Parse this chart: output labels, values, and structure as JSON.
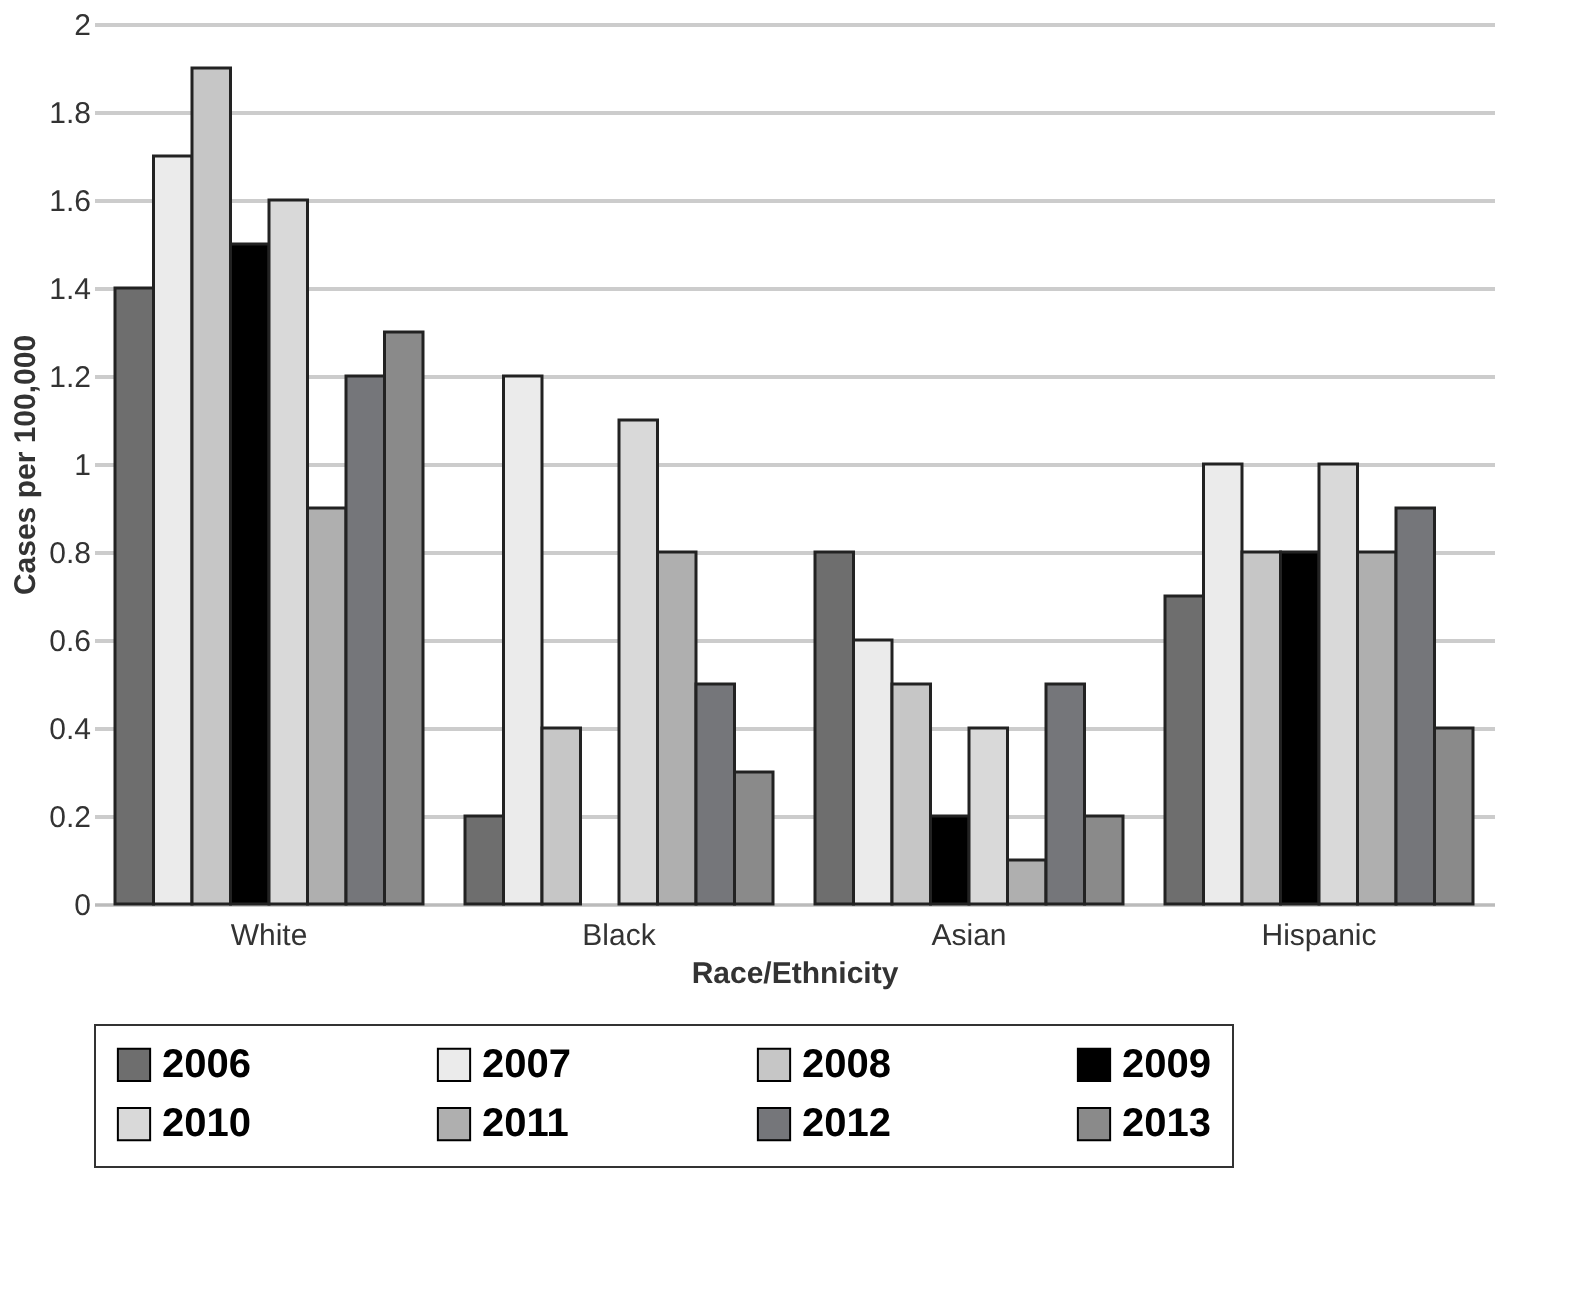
{
  "chart_data": {
    "type": "bar",
    "xlabel": "Race/Ethnicity",
    "ylabel": "Cases per 100,000",
    "categories": [
      "White",
      "Black",
      "Asian",
      "Hispanic"
    ],
    "series": [
      {
        "name": "2006",
        "color": "#6e6e6e",
        "values": [
          1.4,
          0.2,
          0.8,
          0.7
        ]
      },
      {
        "name": "2007",
        "color": "#ebebeb",
        "values": [
          1.7,
          1.2,
          0.6,
          1.0
        ]
      },
      {
        "name": "2008",
        "color": "#c6c6c6",
        "values": [
          1.9,
          0.4,
          0.5,
          0.8
        ]
      },
      {
        "name": "2009",
        "color": "#000000",
        "values": [
          1.5,
          null,
          0.2,
          0.8
        ]
      },
      {
        "name": "2010",
        "color": "#d9d9d9",
        "values": [
          1.6,
          1.1,
          0.4,
          1.0
        ]
      },
      {
        "name": "2011",
        "color": "#afafaf",
        "values": [
          0.9,
          0.8,
          0.1,
          0.8
        ]
      },
      {
        "name": "2012",
        "color": "#75767a",
        "values": [
          1.2,
          0.5,
          0.5,
          0.9
        ]
      },
      {
        "name": "2013",
        "color": "#8a8a8a",
        "values": [
          1.3,
          0.3,
          0.2,
          0.4
        ]
      }
    ],
    "ylim": [
      0,
      2
    ],
    "yticks": [
      0,
      0.2,
      0.4,
      0.6,
      0.8,
      1,
      1.2,
      1.4,
      1.6,
      1.8,
      2
    ],
    "grid": "y",
    "legend": "bottom"
  }
}
